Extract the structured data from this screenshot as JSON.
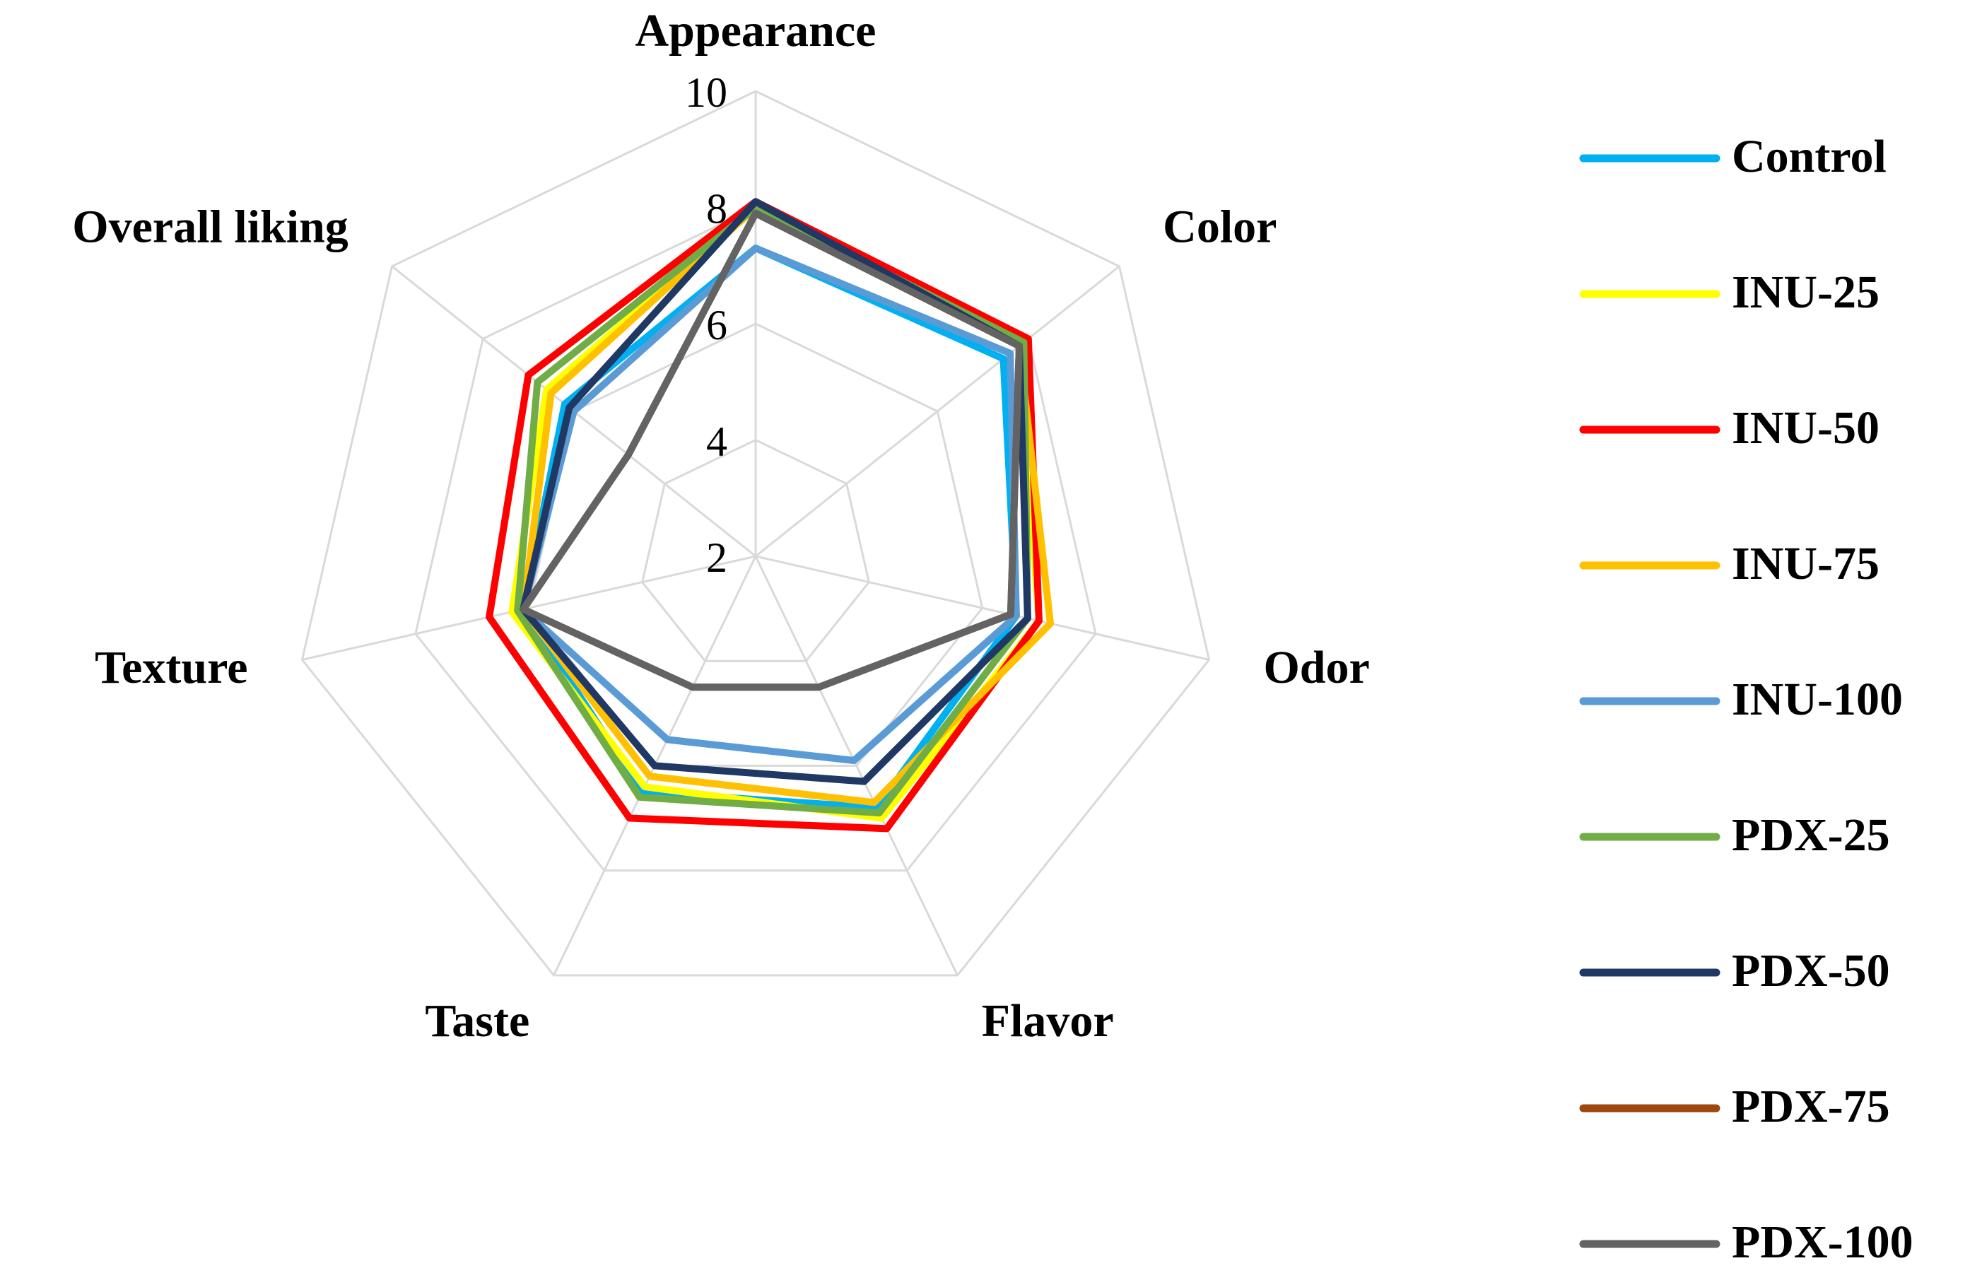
{
  "chart_data": {
    "type": "radar",
    "categories": [
      "Appearance",
      "Color",
      "Odor",
      "Flavor",
      "Taste",
      "Texture",
      "Overall liking"
    ],
    "ylim": [
      2,
      10
    ],
    "yticks": [
      2,
      4,
      6,
      8,
      10
    ],
    "grid": true,
    "series": [
      {
        "name": "Control",
        "color": "#00b0f0",
        "values": [
          7.3,
          7.45,
          6.6,
          6.8,
          6.5,
          6.1,
          6.2
        ]
      },
      {
        "name": "INU-25",
        "color": "#ffff00",
        "values": [
          8.0,
          7.8,
          7.0,
          7.0,
          6.4,
          6.3,
          6.6
        ]
      },
      {
        "name": "INU-50",
        "color": "#ff0000",
        "values": [
          8.1,
          8.0,
          7.0,
          7.2,
          7.0,
          6.7,
          7.0
        ]
      },
      {
        "name": "INU-75",
        "color": "#ffc000",
        "values": [
          8.0,
          7.8,
          7.2,
          6.7,
          6.2,
          6.1,
          6.5
        ]
      },
      {
        "name": "INU-100",
        "color": "#5b9bd5",
        "values": [
          7.3,
          7.6,
          6.6,
          5.9,
          5.5,
          6.1,
          6.0
        ]
      },
      {
        "name": "PDX-25",
        "color": "#70ad47",
        "values": [
          8.0,
          7.9,
          6.8,
          6.9,
          6.6,
          6.2,
          6.8
        ]
      },
      {
        "name": "PDX-50",
        "color": "#203864",
        "values": [
          8.1,
          7.8,
          6.8,
          6.3,
          6.0,
          6.1,
          6.1
        ]
      },
      {
        "name": "PDX-75",
        "color": "#9e480e",
        "values": [
          7.9,
          7.8,
          6.5,
          4.5,
          4.5,
          6.1,
          4.8
        ]
      },
      {
        "name": "PDX-100",
        "color": "#636363",
        "values": [
          7.9,
          7.8,
          6.5,
          4.5,
          4.5,
          6.1,
          4.8
        ]
      }
    ]
  }
}
